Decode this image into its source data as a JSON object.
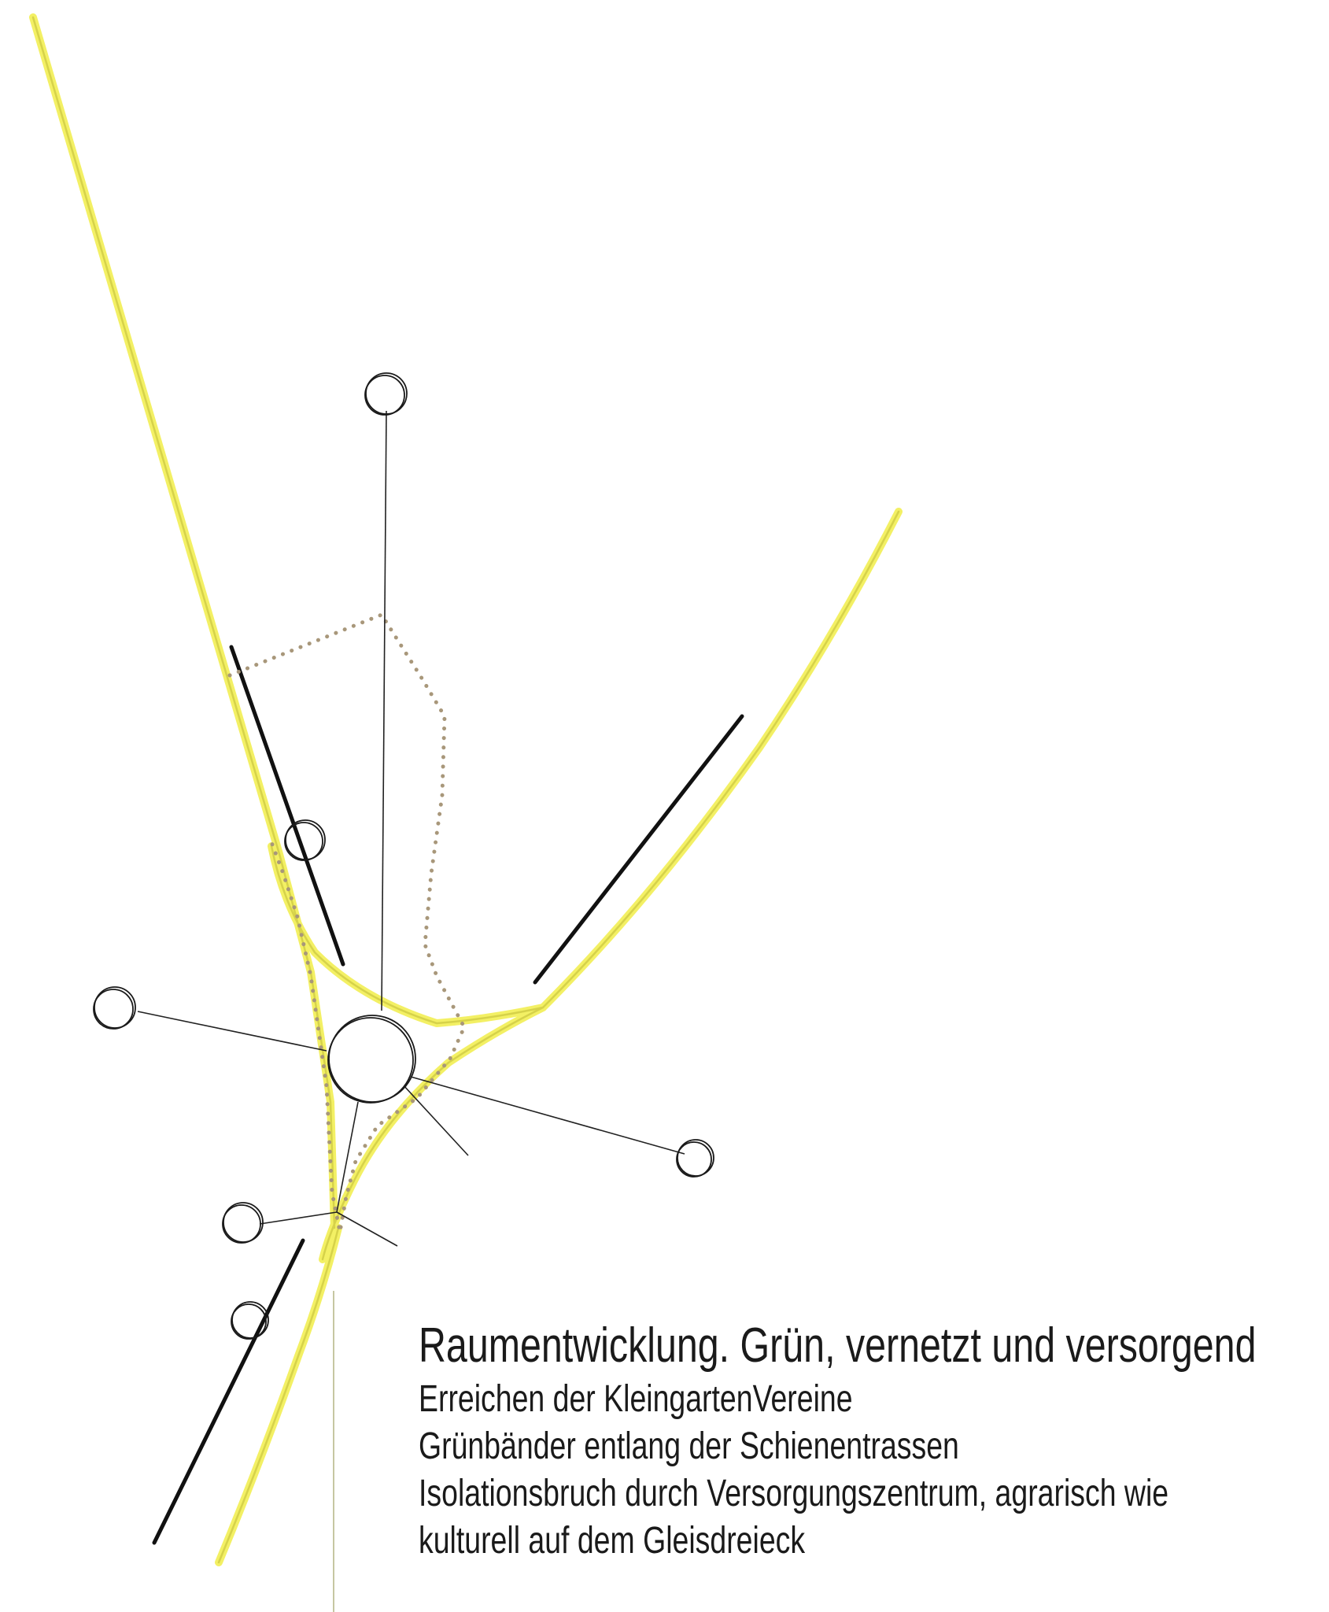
{
  "caption": {
    "title": "Raumentwicklung. Grün, vernetzt und versorgend",
    "lines": [
      "Erreichen der KleingartenVereine",
      "Grünbänder entlang der Schienentrassen",
      "Isolationsbruch durch Versorgungszentrum, agrarisch wie",
      "kulturell auf dem Gleisdreieck"
    ]
  },
  "colors": {
    "green_band": "#f3f064",
    "green_band_core": "#d6d24a",
    "rail": "#111111",
    "boundary_dots": "#a8977a",
    "connection_lines": "#222222",
    "divider": "#b7b98a"
  }
}
